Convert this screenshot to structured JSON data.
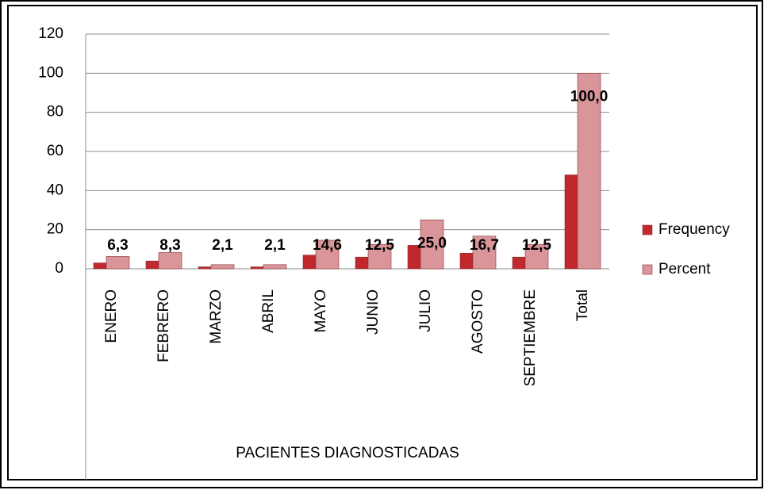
{
  "chart_data": {
    "type": "bar",
    "x_label": "PACIENTES DIAGNOSTICADAS",
    "categories": [
      "ENERO",
      "FEBRERO",
      "MARZO",
      "ABRIL",
      "MAYO",
      "JUNIO",
      "JULIO",
      "AGOSTO",
      "SEPTIEMBRE",
      "Total"
    ],
    "series": [
      {
        "name": "Frequency",
        "color": "#c0282d",
        "values": [
          3,
          4,
          1,
          1,
          7,
          6,
          12,
          8,
          6,
          48
        ]
      },
      {
        "name": "Percent",
        "color": "#d9959a",
        "values": [
          6.3,
          8.3,
          2.1,
          2.1,
          14.6,
          12.5,
          25.0,
          16.7,
          12.5,
          100.0
        ],
        "value_labels": [
          "6,3",
          "8,3",
          "2,1",
          "2,1",
          "14,6",
          "12,5",
          "25,0",
          "16,7",
          "12,5",
          "100,0"
        ]
      }
    ],
    "ylim": [
      0,
      120
    ],
    "yticks": [
      0,
      20,
      40,
      60,
      80,
      100,
      120
    ],
    "grid": true,
    "legend": "right"
  }
}
